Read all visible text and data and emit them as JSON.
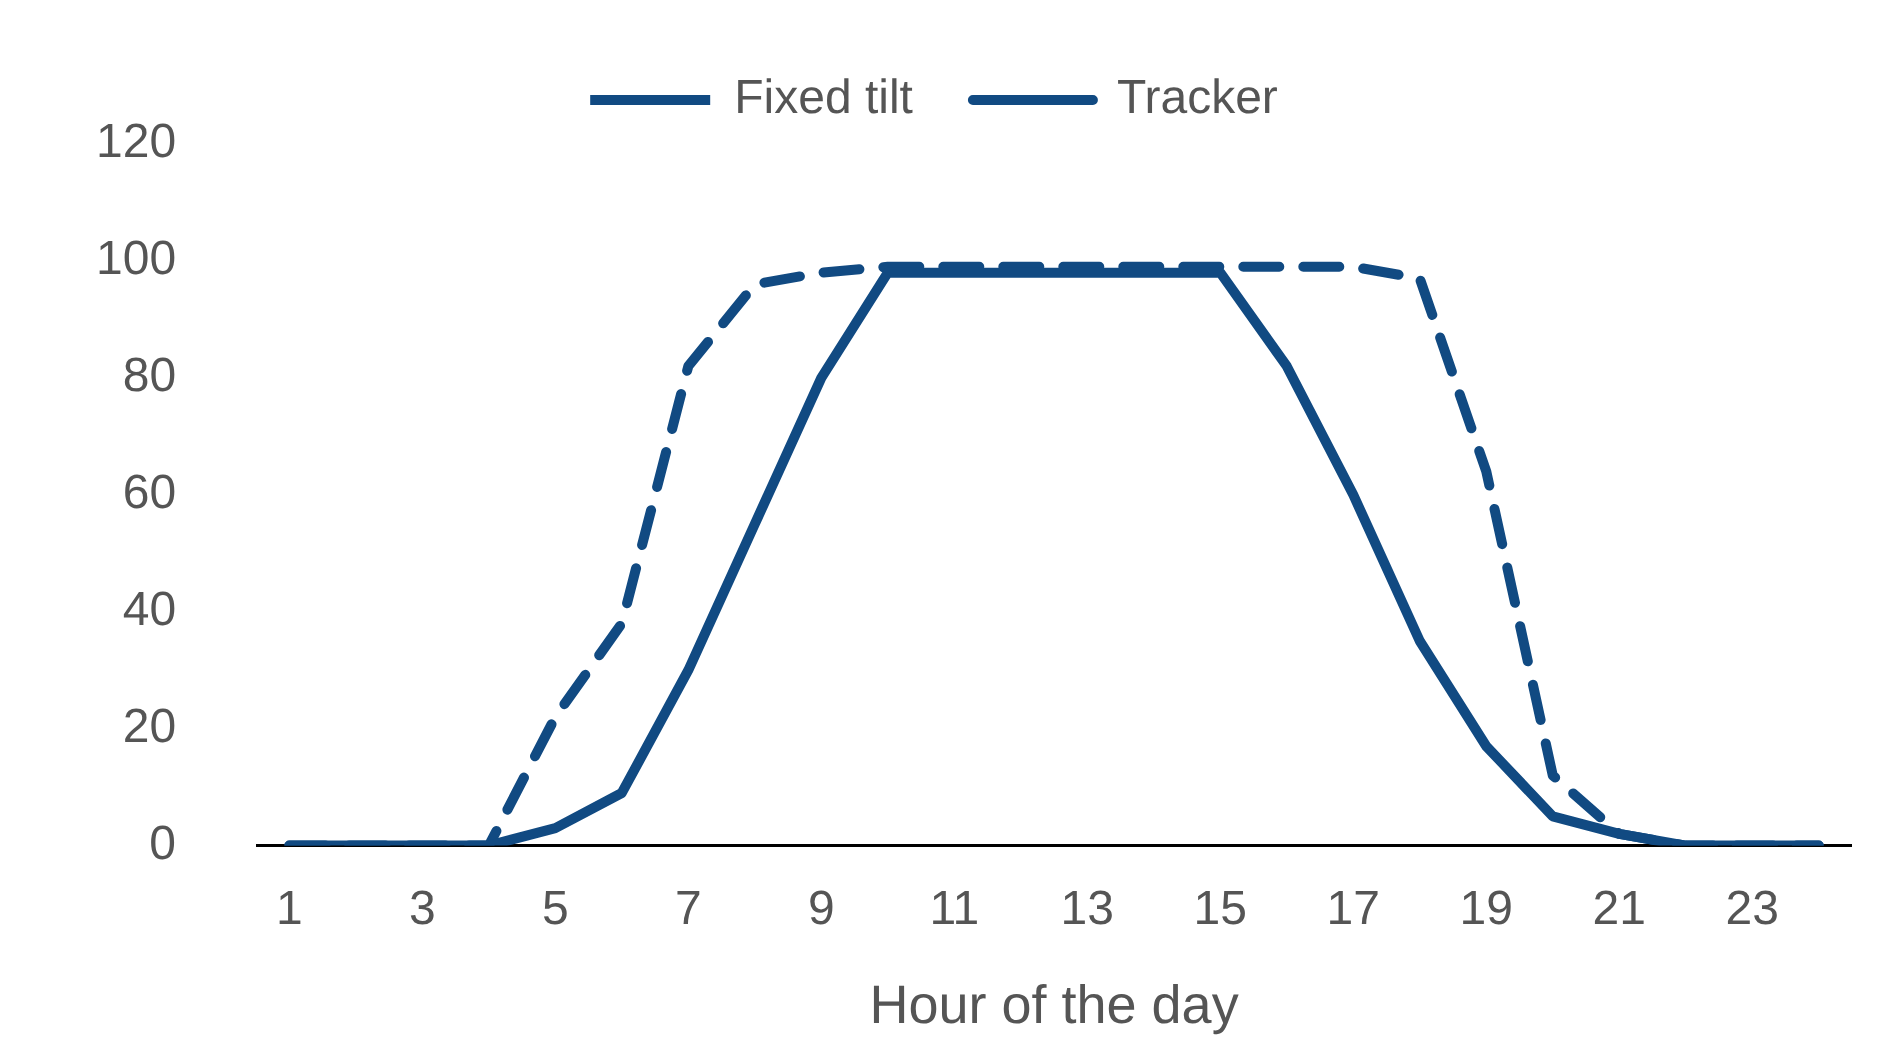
{
  "chart_data": {
    "type": "line",
    "xlabel": "Hour of the day",
    "x": [
      1,
      2,
      3,
      4,
      5,
      6,
      7,
      8,
      9,
      10,
      11,
      12,
      13,
      14,
      15,
      16,
      17,
      18,
      19,
      20,
      21,
      22,
      23,
      24
    ],
    "xlim": [
      0.5,
      24.5
    ],
    "xticks": [
      1,
      3,
      5,
      7,
      9,
      11,
      13,
      15,
      17,
      19,
      21,
      23
    ],
    "series": [
      {
        "name": "Fixed tilt",
        "color": "#114a82",
        "line_style": "solid",
        "values": [
          0,
          0,
          0,
          0,
          3,
          9,
          30,
          55,
          80,
          98,
          98,
          98,
          98,
          98,
          98,
          82,
          60,
          35,
          17,
          5,
          2,
          0,
          0,
          0
        ]
      },
      {
        "name": "Tracker",
        "color": "#114a82",
        "line_style": "dashed",
        "values": [
          0,
          0,
          0,
          0,
          22,
          38,
          82,
          96,
          98,
          99,
          99,
          99,
          99,
          99,
          99,
          99,
          99,
          97,
          64,
          12,
          2,
          0,
          0,
          0
        ]
      }
    ],
    "ylim": [
      0,
      120
    ],
    "yticks": [
      0,
      20,
      40,
      60,
      80,
      100,
      120
    ],
    "grid": false,
    "legend": "top",
    "marker": "none"
  }
}
